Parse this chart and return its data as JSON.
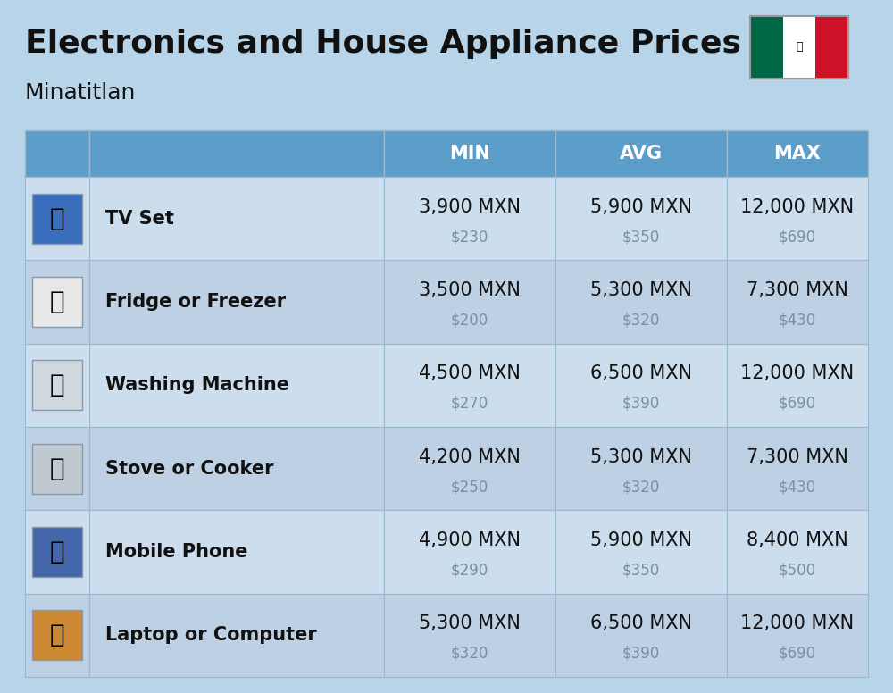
{
  "title": "Electronics and House Appliance Prices",
  "subtitle": "Minatitlan",
  "bg_color": "#b8d4e8",
  "header_color": "#5b9ec9",
  "header_text_color": "#ffffff",
  "row_colors": [
    "#ccdded",
    "#bed0e4"
  ],
  "border_color": "#9ab8ce",
  "columns": [
    "MIN",
    "AVG",
    "MAX"
  ],
  "rows": [
    {
      "name": "TV Set",
      "min_mxn": "3,900 MXN",
      "min_usd": "$230",
      "avg_mxn": "5,900 MXN",
      "avg_usd": "$350",
      "max_mxn": "12,000 MXN",
      "max_usd": "$690"
    },
    {
      "name": "Fridge or Freezer",
      "min_mxn": "3,500 MXN",
      "min_usd": "$200",
      "avg_mxn": "5,300 MXN",
      "avg_usd": "$320",
      "max_mxn": "7,300 MXN",
      "max_usd": "$430"
    },
    {
      "name": "Washing Machine",
      "min_mxn": "4,500 MXN",
      "min_usd": "$270",
      "avg_mxn": "6,500 MXN",
      "avg_usd": "$390",
      "max_mxn": "12,000 MXN",
      "max_usd": "$690"
    },
    {
      "name": "Stove or Cooker",
      "min_mxn": "4,200 MXN",
      "min_usd": "$250",
      "avg_mxn": "5,300 MXN",
      "avg_usd": "$320",
      "max_mxn": "7,300 MXN",
      "max_usd": "$430"
    },
    {
      "name": "Mobile Phone",
      "min_mxn": "4,900 MXN",
      "min_usd": "$290",
      "avg_mxn": "5,900 MXN",
      "avg_usd": "$350",
      "max_mxn": "8,400 MXN",
      "max_usd": "$500"
    },
    {
      "name": "Laptop or Computer",
      "min_mxn": "5,300 MXN",
      "min_usd": "$320",
      "avg_mxn": "6,500 MXN",
      "avg_usd": "$390",
      "max_mxn": "12,000 MXN",
      "max_usd": "$690"
    }
  ],
  "title_fontsize": 26,
  "subtitle_fontsize": 18,
  "header_fontsize": 15,
  "cell_fontsize_main": 15,
  "cell_fontsize_sub": 12,
  "item_fontsize": 15,
  "icon_fontsize": 20,
  "flag_green": "#006847",
  "flag_white": "#ffffff",
  "flag_red": "#ce1126",
  "usd_color": "#7a8fa0"
}
